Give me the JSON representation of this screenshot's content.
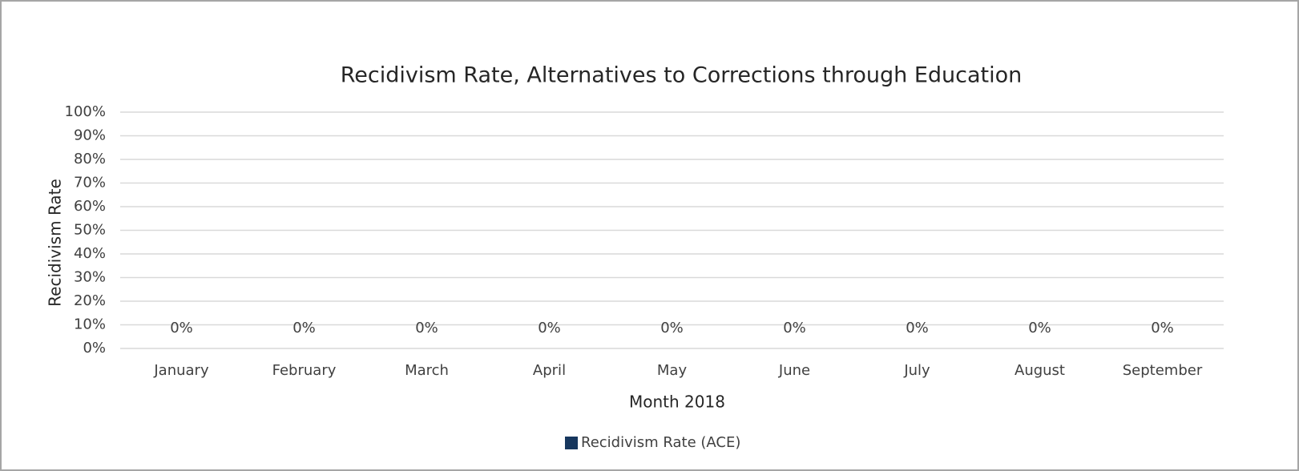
{
  "chart_data": {
    "type": "bar",
    "title": "Recidivism Rate, Alternatives to Corrections through Education",
    "x_label": "Month 2018",
    "y_label": "Recidivism Rate",
    "categories": [
      "January",
      "February",
      "March",
      "April",
      "May",
      "June",
      "July",
      "August",
      "September"
    ],
    "series": [
      {
        "name": "Recidivism Rate (ACE)",
        "color": "#17375e",
        "values": [
          0,
          0,
          0,
          0,
          0,
          0,
          0,
          0,
          0
        ],
        "value_labels": [
          "0%",
          "0%",
          "0%",
          "0%",
          "0%",
          "0%",
          "0%",
          "0%",
          "0%"
        ]
      }
    ],
    "ylim": [
      0,
      100
    ],
    "yticks": [
      {
        "value": 0,
        "label": "0%"
      },
      {
        "value": 10,
        "label": "10%"
      },
      {
        "value": 20,
        "label": "20%"
      },
      {
        "value": 30,
        "label": "30%"
      },
      {
        "value": 40,
        "label": "40%"
      },
      {
        "value": 50,
        "label": "50%"
      },
      {
        "value": 60,
        "label": "60%"
      },
      {
        "value": 70,
        "label": "70%"
      },
      {
        "value": 80,
        "label": "80%"
      },
      {
        "value": 90,
        "label": "90%"
      },
      {
        "value": 100,
        "label": "100%"
      }
    ],
    "grid": true,
    "legend": "bottom"
  }
}
